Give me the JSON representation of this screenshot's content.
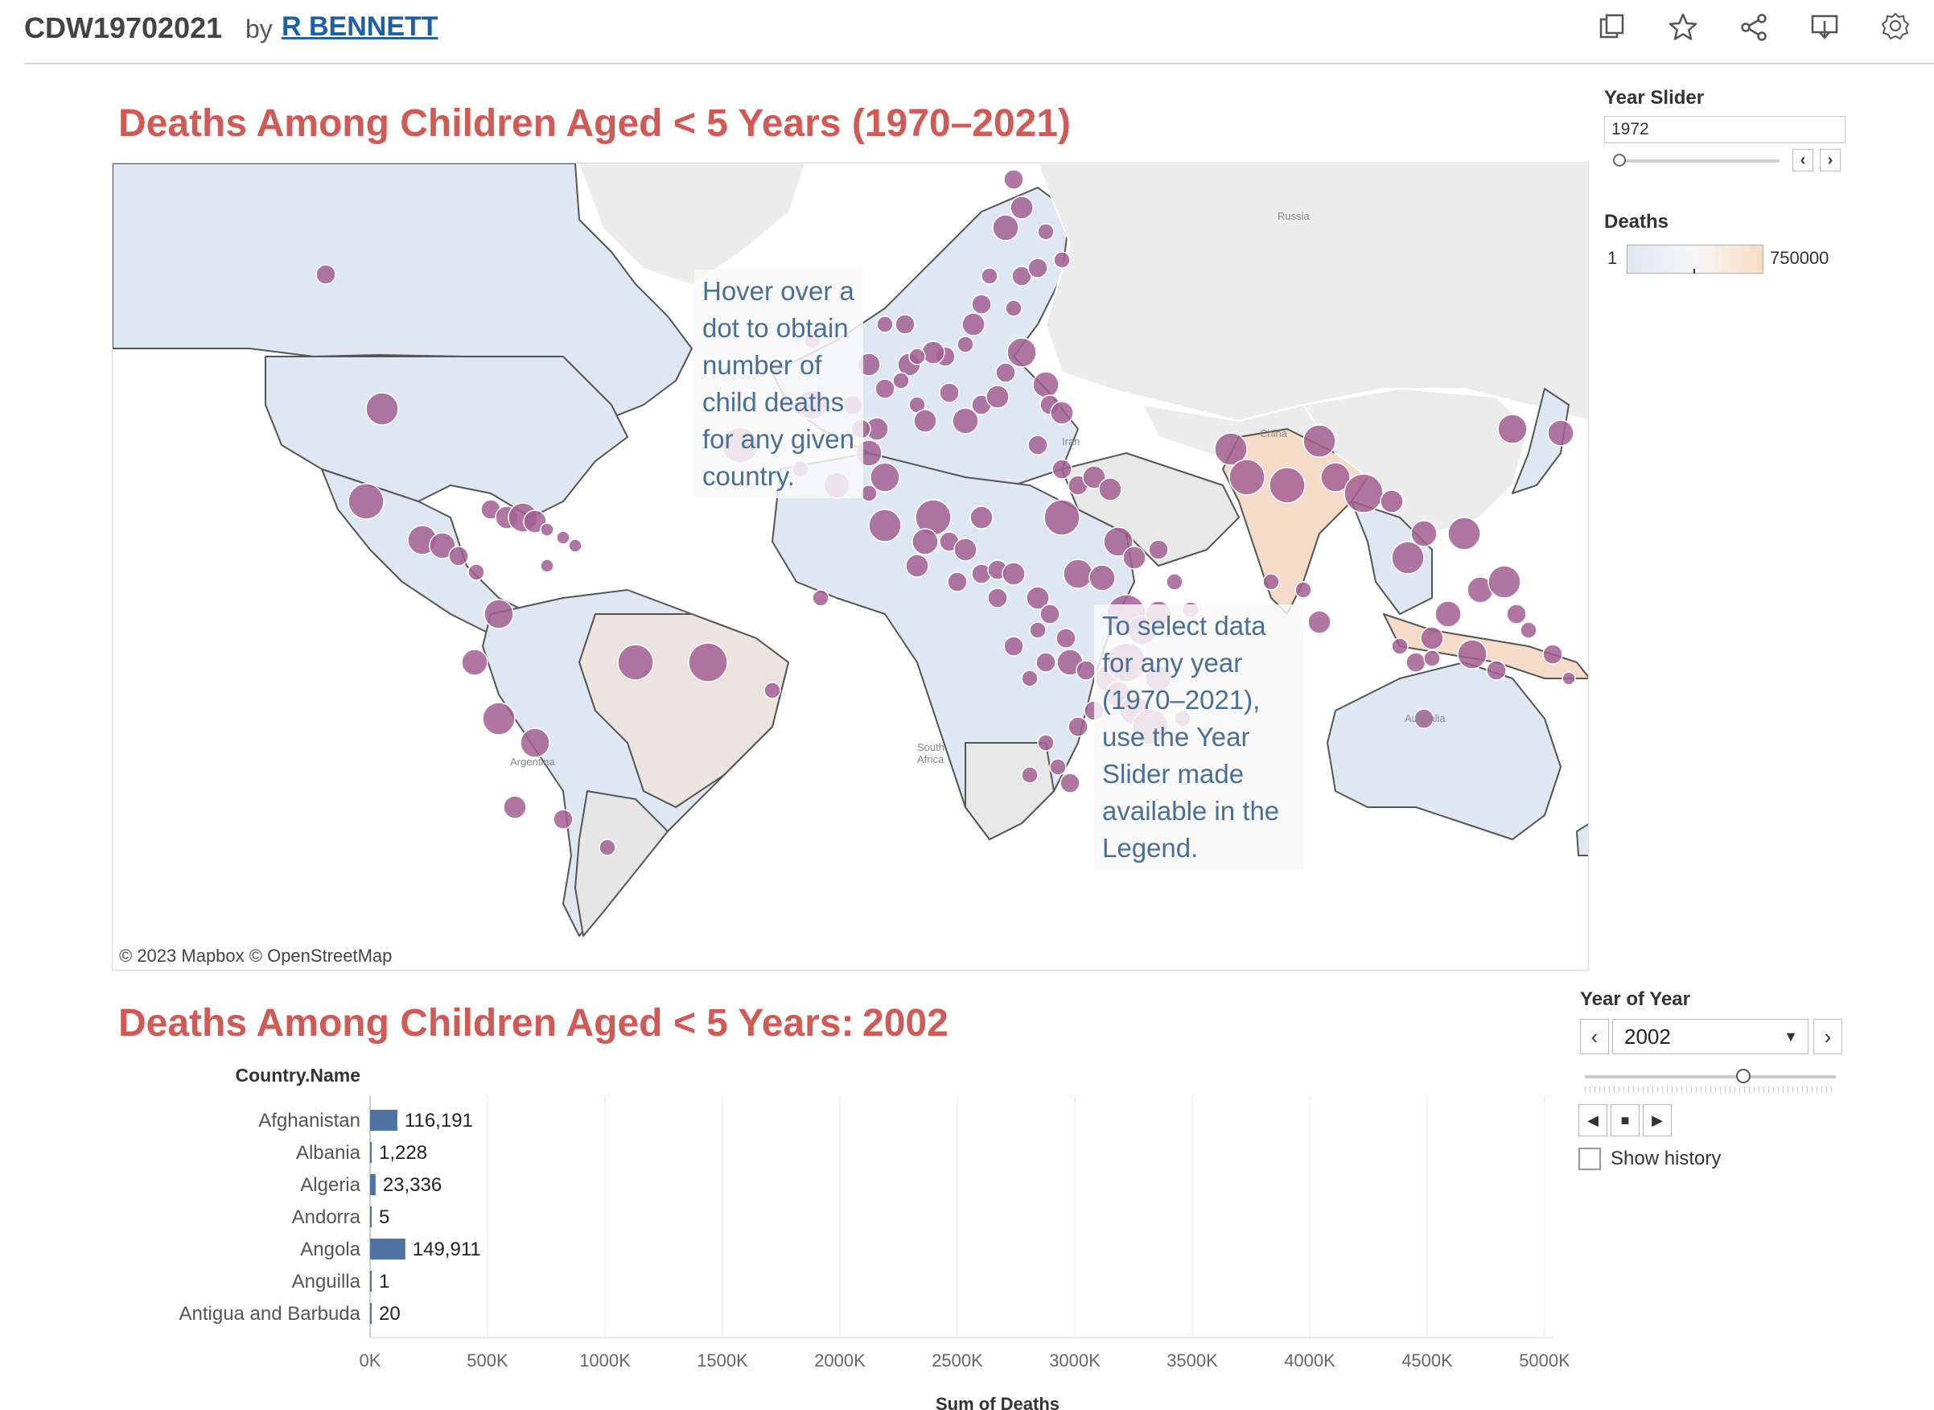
{
  "header": {
    "viz_title": "CDW19702021",
    "by": "by",
    "author": "R BENNETT",
    "icons": [
      "duplicate-icon",
      "star-icon",
      "share-icon",
      "download-icon",
      "badge-icon"
    ]
  },
  "map_sheet": {
    "title": "Deaths Among Children Aged < 5 Years (1970–2021)",
    "attribution": "© 2023 Mapbox  © OpenStreetMap",
    "labels": {
      "russia": "Russia",
      "china": "China",
      "iran": "Iran",
      "argentina": "Argentina",
      "south_africa": "South Africa",
      "australia": "Australia"
    },
    "annotation_hover": "Hover over a dot to obtain number of child deaths for any given country.",
    "annotation_select": "To select data for any year (1970–2021), use the Year Slider made available in the Legend.",
    "colors": {
      "dot": "#a35f93",
      "low": "#dfe7f2",
      "high": "#f9dcc4",
      "nodata": "#e8e8e8"
    }
  },
  "legend": {
    "year_slider_label": "Year Slider",
    "year_slider_value": "1972",
    "deaths_label": "Deaths",
    "deaths_min": "1",
    "deaths_max": "750000"
  },
  "bar_filter": {
    "label": "Year of Year",
    "selected": "2002",
    "show_history": "Show history"
  },
  "bar_sheet": {
    "title": "Deaths Among Children Aged < 5 Years:",
    "year": "2002"
  },
  "chart_data": {
    "type": "bar",
    "orientation": "horizontal",
    "dimension_label": "Country.Name",
    "xlabel": "Sum of Deaths",
    "xlim": [
      0,
      5000000
    ],
    "xticks": [
      "0K",
      "500K",
      "1000K",
      "1500K",
      "2000K",
      "2500K",
      "3000K",
      "3500K",
      "4000K",
      "4500K",
      "5000K"
    ],
    "categories": [
      "Afghanistan",
      "Albania",
      "Algeria",
      "Andorra",
      "Angola",
      "Anguilla",
      "Antigua and Barbuda"
    ],
    "values": [
      116191,
      1228,
      23336,
      5,
      149911,
      1,
      20
    ],
    "value_labels": [
      "116,191",
      "1,228",
      "23,336",
      "5",
      "149,911",
      "1",
      "20"
    ],
    "bar_color": "#4e72a1"
  }
}
